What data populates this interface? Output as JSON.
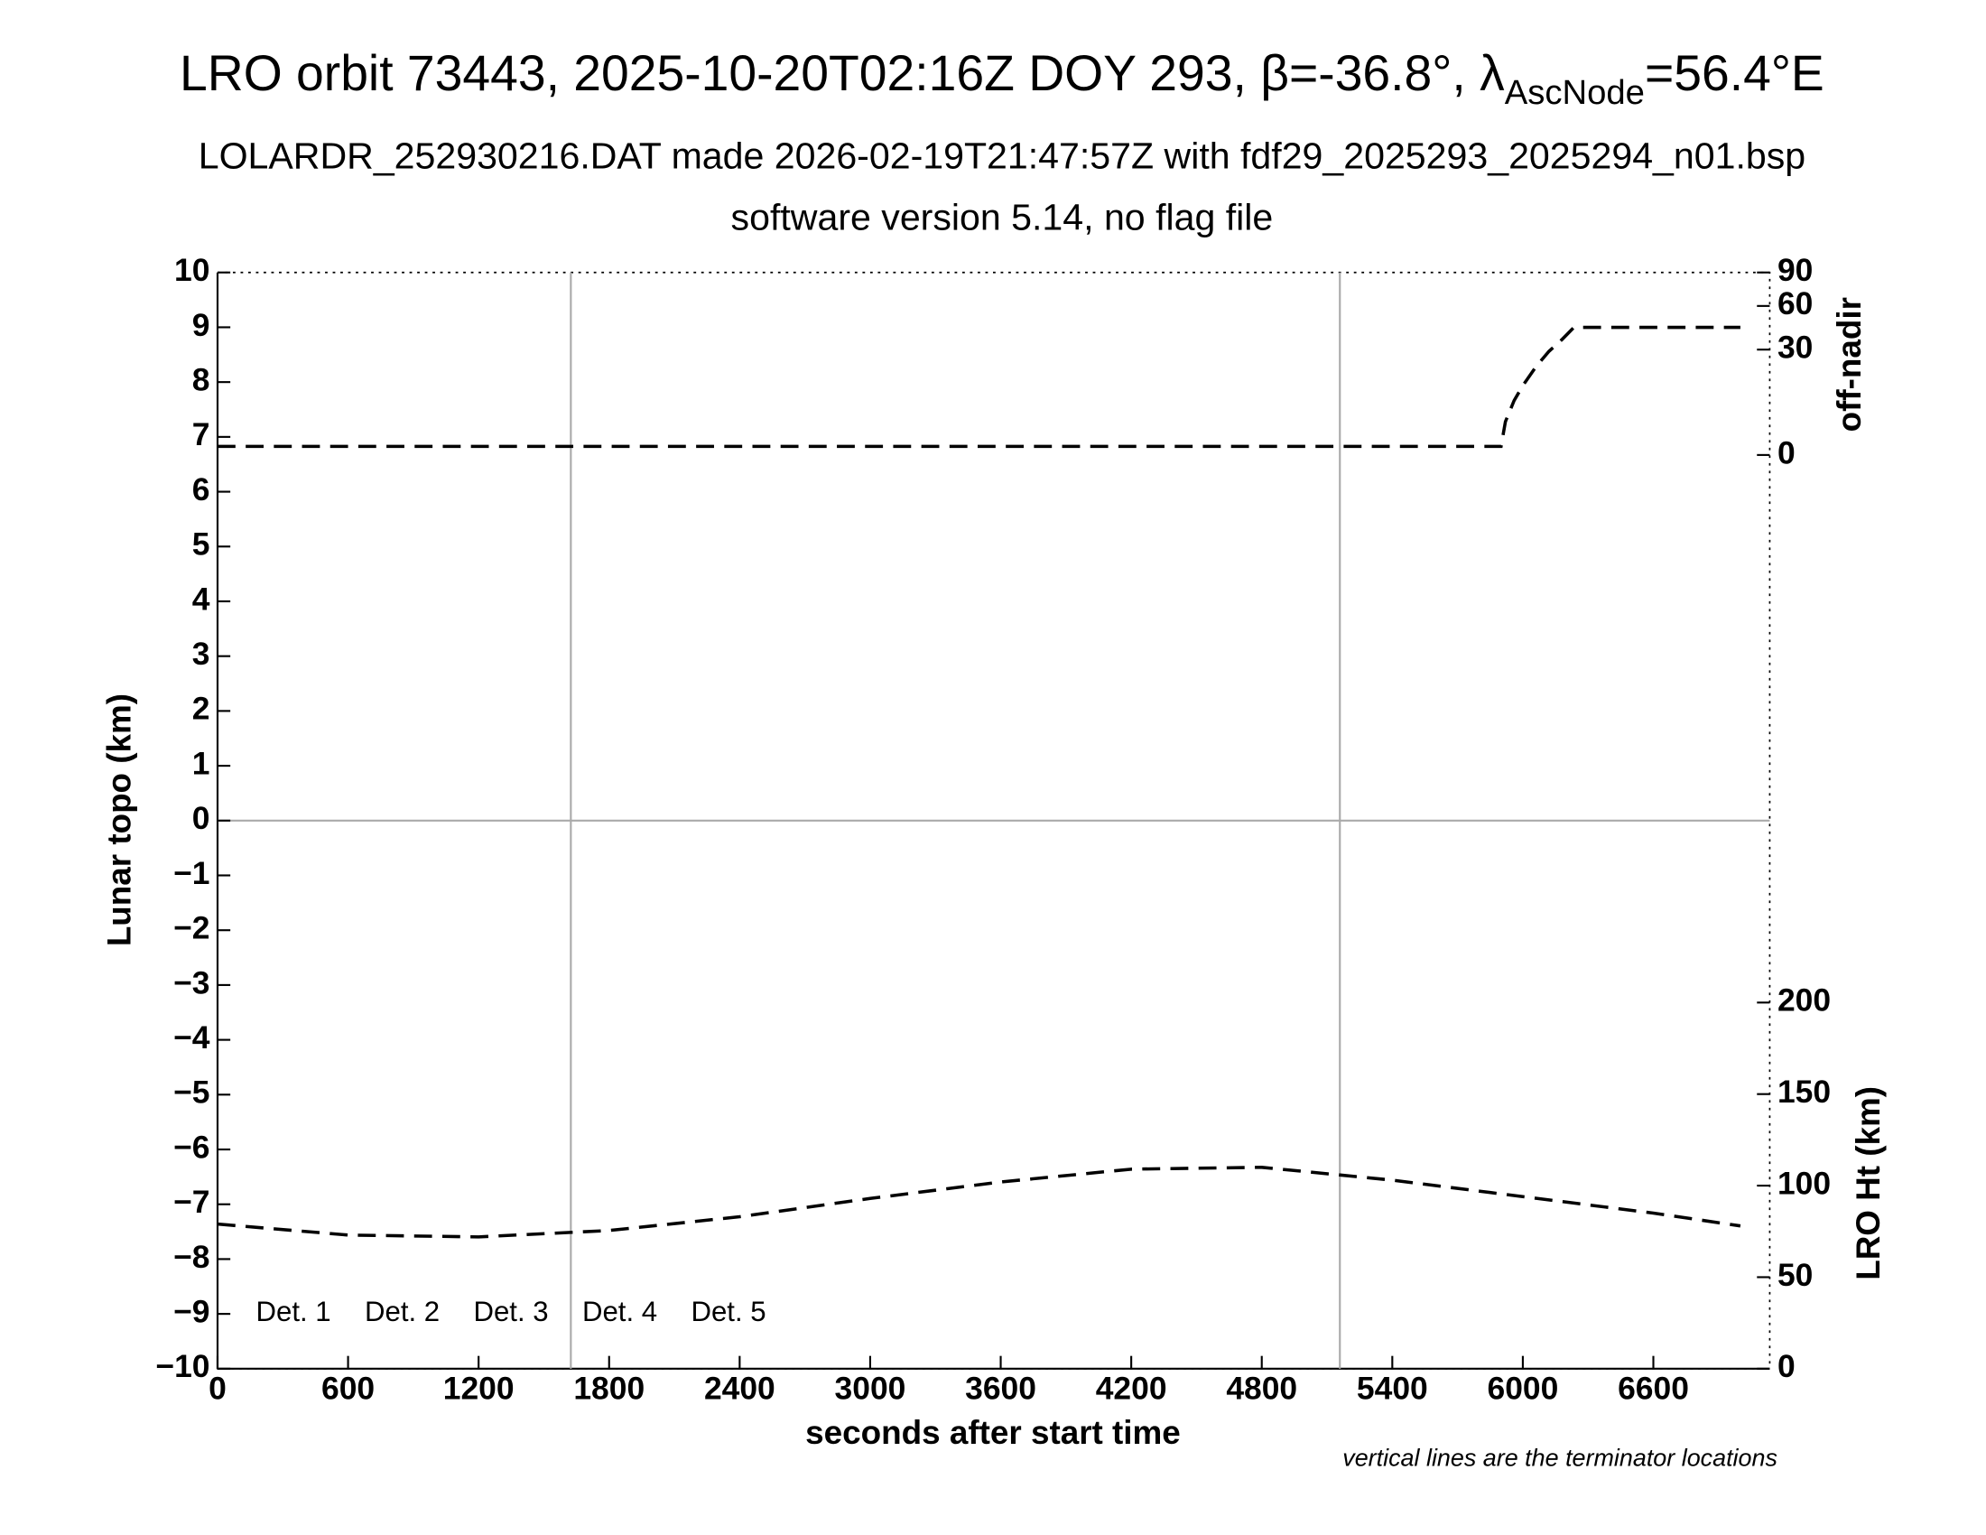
{
  "chart_data": {
    "type": "line",
    "title": {
      "main": "LRO orbit 73443, 2025-10-20T02:16Z DOY 293, β=-36.8°, λ",
      "sub": "AscNode",
      "tail": "=56.4°E"
    },
    "subtitle": [
      "LOLARDR_252930216.DAT made 2026-02-19T21:47:57Z with fdf29_2025293_2025294_n01.bsp",
      "software version 5.14, no flag file"
    ],
    "x_label": "seconds after start time",
    "y_label": "Lunar topo (km)",
    "y2_label": "off-nadir",
    "y3_label": "LRO Ht (km)",
    "note": "vertical lines are the terminator locations",
    "xlim": [
      0,
      7135
    ],
    "xticks": [
      0,
      600,
      1200,
      1800,
      2400,
      3000,
      3600,
      4200,
      4800,
      5400,
      6000,
      6600
    ],
    "ylim": [
      -10,
      10
    ],
    "yticks": [
      {
        "value": -10,
        "label": "−10"
      },
      {
        "value": -9,
        "label": "−9"
      },
      {
        "value": -8,
        "label": "−8"
      },
      {
        "value": -7,
        "label": "−7"
      },
      {
        "value": -6,
        "label": "−6"
      },
      {
        "value": -5,
        "label": "−5"
      },
      {
        "value": -4,
        "label": "−4"
      },
      {
        "value": -3,
        "label": "−3"
      },
      {
        "value": -2,
        "label": "−2"
      },
      {
        "value": -1,
        "label": "−1"
      },
      0,
      1,
      2,
      3,
      4,
      5,
      6,
      7,
      8,
      9,
      10
    ],
    "y2lim": [
      0,
      90
    ],
    "y2ticks": [
      0,
      30,
      60,
      90
    ],
    "y2scale": "sqrt",
    "y3lim": [
      0,
      200
    ],
    "y3ticks": [
      0,
      50,
      100,
      150,
      200
    ],
    "zero_line": 0,
    "terminators": [
      1624,
      5159
    ],
    "legend": [
      {
        "name": "Det. 1",
        "color": "#000000"
      },
      {
        "name": "Det. 2",
        "color": "#0000ff"
      },
      {
        "name": "Det. 3",
        "color": "#00ff00"
      },
      {
        "name": "Det. 4",
        "color": "#ffa500"
      },
      {
        "name": "Det. 5",
        "color": "#ff0000"
      }
    ],
    "series": [
      {
        "axis": "y2",
        "color": "#000000",
        "x": [
          0,
          5900,
          5920,
          5960,
          6000,
          6060,
          6120,
          6180,
          6235,
          7000
        ],
        "values": [
          0.2,
          0.2,
          3,
          8,
          13,
          21,
          29,
          36,
          44,
          44
        ]
      },
      {
        "axis": "y3",
        "color": "#000000",
        "x": [
          0,
          600,
          1200,
          1800,
          2400,
          3000,
          3600,
          4200,
          4800,
          5400,
          6000,
          6600,
          7000
        ],
        "values": [
          79,
          73,
          72,
          75.5,
          83,
          93,
          102,
          109,
          110,
          103,
          94,
          85,
          78
        ]
      }
    ]
  }
}
